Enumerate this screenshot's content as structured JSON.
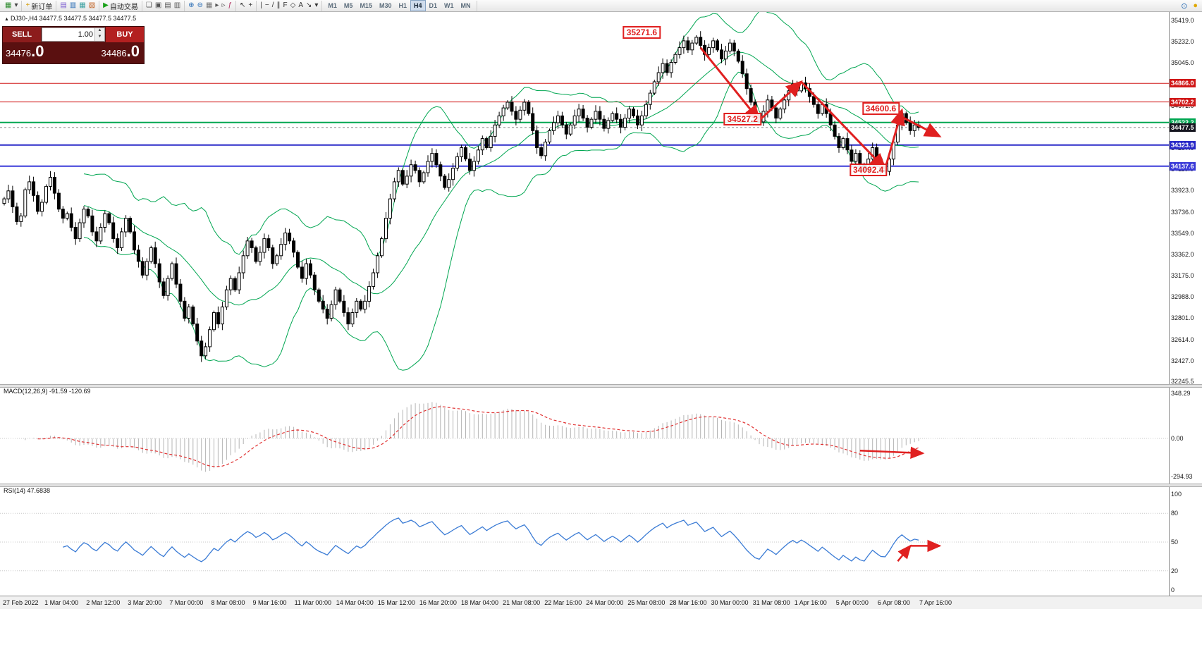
{
  "toolbar": {
    "groups": [
      [
        {
          "name": "new-chart-icon",
          "glyph": "▦",
          "color": "#2e8b2e"
        },
        {
          "name": "new-chart-dropdown-icon",
          "glyph": "▾",
          "color": "#444"
        }
      ],
      [
        {
          "name": "new-order-button",
          "glyph": "+",
          "color": "#d49a00",
          "label": "新订单"
        }
      ],
      [
        {
          "name": "profiles-icon",
          "glyph": "▤",
          "color": "#7a5ad0"
        },
        {
          "name": "market-watch-icon",
          "glyph": "▥",
          "color": "#2a6db5"
        },
        {
          "name": "data-window-icon",
          "glyph": "▦",
          "color": "#3aa0a0"
        },
        {
          "name": "navigator-icon",
          "glyph": "▧",
          "color": "#c06020"
        }
      ],
      [
        {
          "name": "autotrading-button",
          "glyph": "▶",
          "color": "#18a018",
          "label": "自动交易"
        }
      ],
      [
        {
          "name": "new-window-icon",
          "glyph": "❏",
          "color": "#555"
        },
        {
          "name": "cascade-icon",
          "glyph": "▣",
          "color": "#555"
        },
        {
          "name": "tile-horizontal-icon",
          "glyph": "▤",
          "color": "#555"
        },
        {
          "name": "tile-vertical-icon",
          "glyph": "▥",
          "color": "#555"
        }
      ],
      [
        {
          "name": "zoom-in-icon",
          "glyph": "⊕",
          "color": "#2a6db5"
        },
        {
          "name": "zoom-out-icon",
          "glyph": "⊖",
          "color": "#2a6db5"
        },
        {
          "name": "grid-icon",
          "glyph": "▦",
          "color": "#777"
        },
        {
          "name": "auto-scroll-icon",
          "glyph": "▸",
          "color": "#555"
        },
        {
          "name": "chart-shift-icon",
          "glyph": "▹",
          "color": "#555"
        },
        {
          "name": "indicators-icon",
          "glyph": "ƒ",
          "color": "#b03060"
        }
      ],
      [
        {
          "name": "cursor-icon",
          "glyph": "↖",
          "color": "#333"
        },
        {
          "name": "crosshair-icon",
          "glyph": "+",
          "color": "#333"
        }
      ],
      [
        {
          "name": "vertical-line-icon",
          "glyph": "|",
          "color": "#333"
        },
        {
          "name": "horizontal-line-icon",
          "glyph": "−",
          "color": "#333"
        },
        {
          "name": "trendline-icon",
          "glyph": "/",
          "color": "#333"
        },
        {
          "name": "channel-icon",
          "glyph": "∥",
          "color": "#333"
        },
        {
          "name": "fibonacci-icon",
          "glyph": "F",
          "color": "#333"
        },
        {
          "name": "shapes-icon",
          "glyph": "◇",
          "color": "#333"
        },
        {
          "name": "text-icon",
          "glyph": "A",
          "color": "#333"
        },
        {
          "name": "arrows-icon",
          "glyph": "↘",
          "color": "#333"
        },
        {
          "name": "objects-dropdown-icon",
          "glyph": "▾",
          "color": "#333"
        }
      ]
    ],
    "timeframes": [
      "M1",
      "M5",
      "M15",
      "M30",
      "H1",
      "H4",
      "D1",
      "W1",
      "MN"
    ],
    "active_timeframe": "H4",
    "right_icons": [
      {
        "name": "search-icon",
        "glyph": "⊙",
        "color": "#2a6db5"
      },
      {
        "name": "notification-icon",
        "glyph": "●",
        "color": "#e0a800"
      }
    ]
  },
  "trade_panel": {
    "sell_label": "SELL",
    "buy_label": "BUY",
    "volume": "1.00",
    "spin_up_glyph": "▲",
    "spin_down_glyph": "▼",
    "sell_price_main": "34476",
    "sell_price_frac": ".0",
    "buy_price_main": "34486",
    "buy_price_frac": ".0"
  },
  "chart_header": {
    "marker": "▲",
    "symbol_line": "DJ30-,H4  34477.5 34477.5 34477.5 34477.5"
  },
  "macd_panel": {
    "label": "MACD(12,26,9) -91.59 -120.69"
  },
  "rsi_panel": {
    "label": "RSI(14) 47.6838"
  },
  "chart_data": {
    "type": "candlestick",
    "symbol": "DJ30-",
    "timeframe": "H4",
    "price_axis": {
      "max": 35419.0,
      "min": 32245.5,
      "ticks": [
        35419.0,
        35232.0,
        35045.0,
        34858.0,
        34671.0,
        34484.0,
        34297.0,
        34110.0,
        33923.0,
        33736.0,
        33549.0,
        33362.0,
        33175.0,
        32988.0,
        32801.0,
        32614.0,
        32427.0,
        32245.5
      ]
    },
    "closes": [
      33850,
      33920,
      33780,
      33650,
      33700,
      33930,
      34000,
      33880,
      33740,
      33820,
      33960,
      34040,
      33900,
      33760,
      33680,
      33720,
      33600,
      33500,
      33640,
      33760,
      33700,
      33560,
      33480,
      33600,
      33720,
      33640,
      33500,
      33420,
      33560,
      33680,
      33560,
      33400,
      33300,
      33180,
      33300,
      33420,
      33280,
      33120,
      33000,
      33150,
      33280,
      33100,
      32950,
      32800,
      32900,
      32750,
      32600,
      32470,
      32550,
      32700,
      32850,
      32750,
      32900,
      33050,
      33150,
      33050,
      33200,
      33350,
      33480,
      33420,
      33300,
      33380,
      33500,
      33420,
      33280,
      33350,
      33450,
      33550,
      33480,
      33380,
      33250,
      33150,
      33280,
      33180,
      33050,
      32950,
      32880,
      32800,
      32920,
      33050,
      32950,
      32850,
      32750,
      32850,
      32950,
      32880,
      32950,
      33080,
      33200,
      33350,
      33500,
      33680,
      33850,
      34000,
      34100,
      33980,
      34050,
      34150,
      34100,
      34000,
      34080,
      34180,
      34250,
      34150,
      34050,
      33950,
      34020,
      34120,
      34220,
      34300,
      34200,
      34100,
      34180,
      34280,
      34380,
      34300,
      34400,
      34500,
      34580,
      34650,
      34700,
      34620,
      34550,
      34630,
      34700,
      34600,
      34450,
      34300,
      34230,
      34350,
      34450,
      34520,
      34580,
      34500,
      34420,
      34500,
      34580,
      34640,
      34560,
      34480,
      34550,
      34620,
      34550,
      34470,
      34540,
      34600,
      34550,
      34480,
      34560,
      34640,
      34580,
      34500,
      34580,
      34680,
      34780,
      34880,
      34960,
      35040,
      34960,
      35050,
      35120,
      35180,
      35240,
      35160,
      35220,
      35271,
      35200,
      35120,
      35180,
      35240,
      35160,
      35080,
      35150,
      35220,
      35150,
      35060,
      34950,
      34820,
      34700,
      34580,
      34527,
      34620,
      34720,
      34650,
      34560,
      34640,
      34720,
      34800,
      34860,
      34800,
      34870,
      34820,
      34750,
      34680,
      34600,
      34680,
      34600,
      34500,
      34400,
      34300,
      34380,
      34280,
      34180,
      34250,
      34150,
      34100,
      34200,
      34300,
      34200,
      34100,
      34092,
      34200,
      34350,
      34500,
      34600,
      34520,
      34450,
      34500,
      34477
    ],
    "bollinger": {
      "period": 20,
      "deviation": 2,
      "color": "#00a651"
    },
    "levels": [
      {
        "price": 34866.0,
        "label": "34866.0",
        "color": "#d01818",
        "width": 1,
        "style": "solid"
      },
      {
        "price": 34702.2,
        "label": "34702.2",
        "color": "#d01818",
        "width": 1,
        "style": "solid"
      },
      {
        "price": 34522.2,
        "label": "34522.2",
        "color": "#00a651",
        "width": 2,
        "style": "solid"
      },
      {
        "price": 34477.5,
        "label": "34477.5",
        "color": "#15151f",
        "width": 1,
        "style": "current"
      },
      {
        "price": 34323.9,
        "label": "34323.9",
        "color": "#2a2ac8",
        "width": 2,
        "style": "solid"
      },
      {
        "price": 34137.6,
        "label": "34137.6",
        "color": "#3a3ad8",
        "width": 2,
        "style": "solid"
      }
    ],
    "annotations": {
      "labels": [
        {
          "text": "35271.6",
          "bar": 152,
          "price": 35310
        },
        {
          "text": "34527.2",
          "bar": 176,
          "price": 34545
        },
        {
          "text": "34600.6",
          "bar": 209,
          "price": 34640
        },
        {
          "text": "34092.4",
          "bar": 206,
          "price": 34100
        }
      ],
      "arrows": [
        {
          "from": [
            166,
            35180
          ],
          "to": [
            180,
            34540
          ]
        },
        {
          "from": [
            180,
            34540
          ],
          "to": [
            190,
            34880
          ]
        },
        {
          "from": [
            190,
            34880
          ],
          "to": [
            210,
            34115
          ]
        },
        {
          "from": [
            210,
            34115
          ],
          "to": [
            214,
            34630
          ]
        },
        {
          "from": [
            214,
            34570
          ],
          "to": [
            223,
            34400
          ]
        }
      ],
      "macd_arrow": {
        "from": [
          204,
          -95
        ],
        "to": [
          219,
          -115
        ]
      },
      "rsi_arrows": [
        {
          "from": [
            213,
            30
          ],
          "to": [
            216,
            46
          ]
        },
        {
          "from": [
            216,
            46
          ],
          "to": [
            223,
            46
          ]
        }
      ],
      "arrow_color": "#e02020"
    },
    "macd": {
      "fast": 12,
      "slow": 26,
      "signal": 9,
      "current_values": [
        -91.59,
        -120.69
      ],
      "axis_max": 348.29,
      "axis_min": -294.93,
      "axis_ticks": [
        "348.29",
        "0.00",
        "-294.93"
      ],
      "histogram_color": "#b4b4b4",
      "signal_color": "#e03030"
    },
    "rsi": {
      "period": 14,
      "current_value": 47.6838,
      "axis_ticks": [
        100,
        80,
        50,
        20,
        0
      ],
      "grid_levels": [
        80,
        50,
        20
      ],
      "line_color": "#3a7bd5"
    },
    "time_labels": [
      "27 Feb 2022",
      "1 Mar 04:00",
      "2 Mar 12:00",
      "3 Mar 20:00",
      "7 Mar 00:00",
      "8 Mar 08:00",
      "9 Mar 16:00",
      "11 Mar 00:00",
      "14 Mar 04:00",
      "15 Mar 12:00",
      "16 Mar 20:00",
      "18 Mar 04:00",
      "21 Mar 08:00",
      "22 Mar 16:00",
      "24 Mar 00:00",
      "25 Mar 08:00",
      "28 Mar 16:00",
      "30 Mar 00:00",
      "31 Mar 08:00",
      "1 Apr 16:00",
      "5 Apr 00:00",
      "6 Apr 08:00",
      "7 Apr 16:00"
    ]
  }
}
